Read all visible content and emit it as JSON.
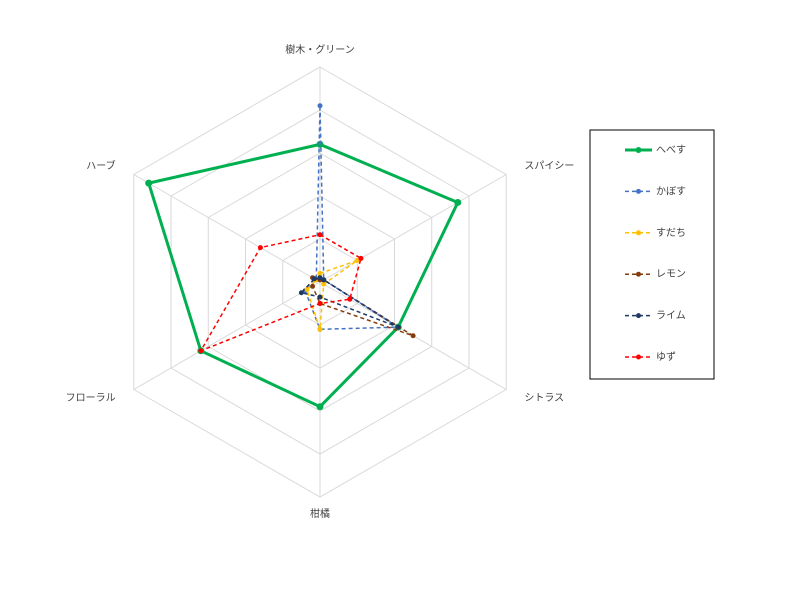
{
  "chart_data": {
    "type": "radar",
    "categories": [
      "樹木・グリーン",
      "スパイシー",
      "シトラス",
      "柑橘",
      "フローラル",
      "ハーブ"
    ],
    "rlim": [
      0,
      5
    ],
    "rticks": [
      1,
      2,
      3,
      4,
      5
    ],
    "grid": true,
    "legend": "right",
    "series": [
      {
        "name": "へべす",
        "color": "#00b050",
        "dash": false,
        "values": [
          3.2,
          3.7,
          2.1,
          2.9,
          3.2,
          4.6
        ]
      },
      {
        "name": "かぼす",
        "color": "#4472c4",
        "dash": true,
        "values": [
          4.1,
          0.1,
          2.1,
          1.1,
          0.4,
          0.1
        ]
      },
      {
        "name": "すだち",
        "color": "#ffc000",
        "dash": true,
        "values": [
          0.2,
          1.0,
          0.1,
          1.1,
          0.35,
          0.1
        ]
      },
      {
        "name": "レモン",
        "color": "#843c0c",
        "dash": true,
        "values": [
          0.05,
          0.1,
          2.5,
          0.5,
          0.2,
          0.2
        ]
      },
      {
        "name": "ライム",
        "color": "#1f3864",
        "dash": true,
        "values": [
          0.1,
          0.1,
          2.1,
          0.35,
          0.5,
          0.15
        ]
      },
      {
        "name": "ゆず",
        "color": "#ff0000",
        "dash": true,
        "values": [
          1.1,
          1.1,
          0.8,
          0.5,
          3.2,
          1.6
        ]
      }
    ]
  }
}
